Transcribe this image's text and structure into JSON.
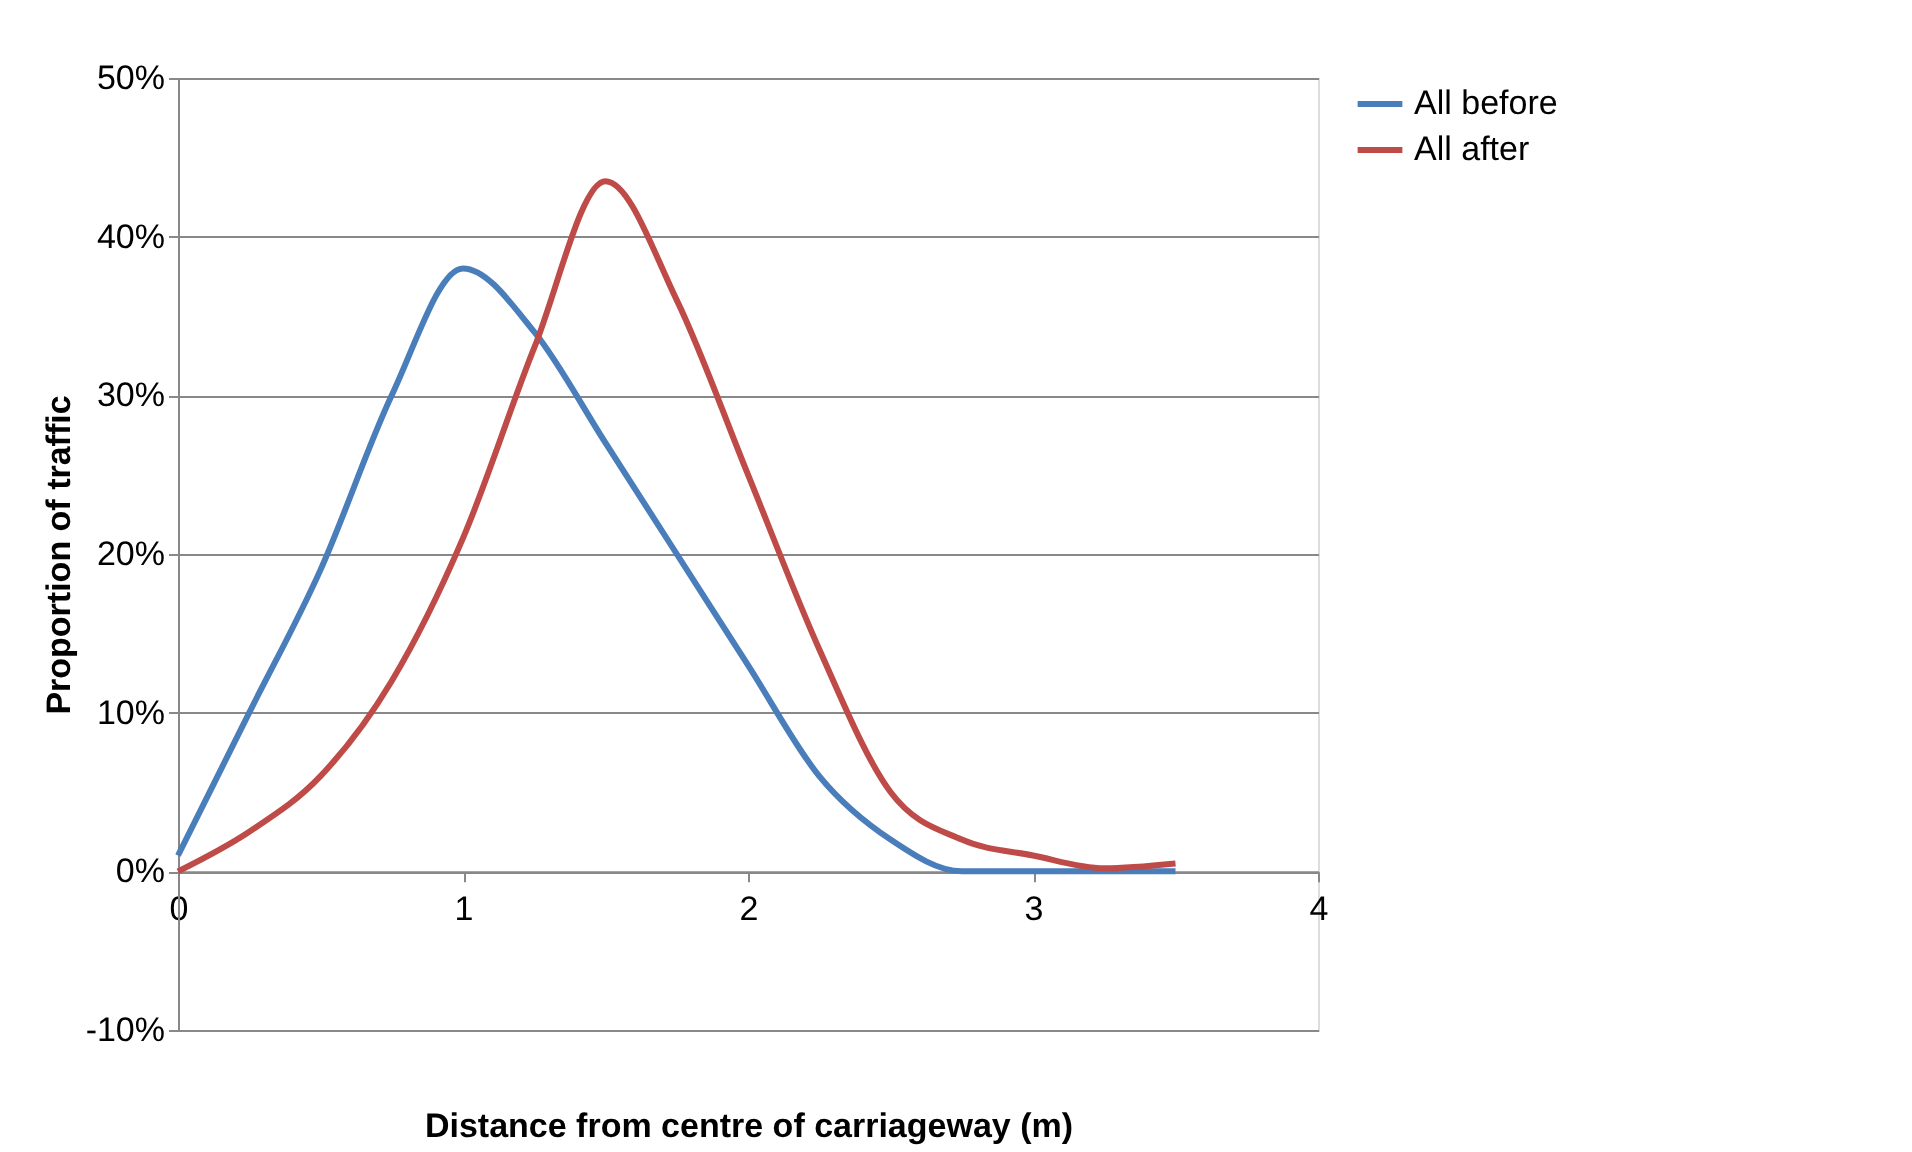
{
  "chart_data": {
    "type": "line",
    "xlabel": "Distance from centre of carriageway (m)",
    "ylabel": "Proportion of traffic",
    "x": [
      0,
      0.25,
      0.5,
      0.75,
      1,
      1.25,
      1.5,
      1.75,
      2,
      2.25,
      2.5,
      2.75,
      3,
      3.25,
      3.5
    ],
    "series": [
      {
        "name": "All before",
        "color": "#4a7ebb",
        "values": [
          1,
          10,
          19,
          30,
          38,
          34,
          27,
          20,
          13,
          6,
          2,
          0,
          0,
          0,
          0
        ]
      },
      {
        "name": "All after",
        "color": "#be4b48",
        "values": [
          0,
          2.5,
          6,
          12,
          21,
          33,
          43.5,
          36,
          25,
          14,
          5,
          2,
          1,
          0.2,
          0.5
        ]
      }
    ],
    "xlim": [
      0,
      4
    ],
    "xticks": [
      0,
      1,
      2,
      3,
      4
    ],
    "ylim": [
      -10,
      50
    ],
    "yticks": [
      {
        "value": -10,
        "label": "-10%"
      },
      {
        "value": 0,
        "label": "0%"
      },
      {
        "value": 10,
        "label": "10%"
      },
      {
        "value": 20,
        "label": "20%"
      },
      {
        "value": 30,
        "label": "30%"
      },
      {
        "value": 40,
        "label": "40%"
      },
      {
        "value": 50,
        "label": "50%"
      }
    ],
    "grid": "y",
    "legend": "right",
    "marker": "none",
    "line_style": "solid"
  }
}
